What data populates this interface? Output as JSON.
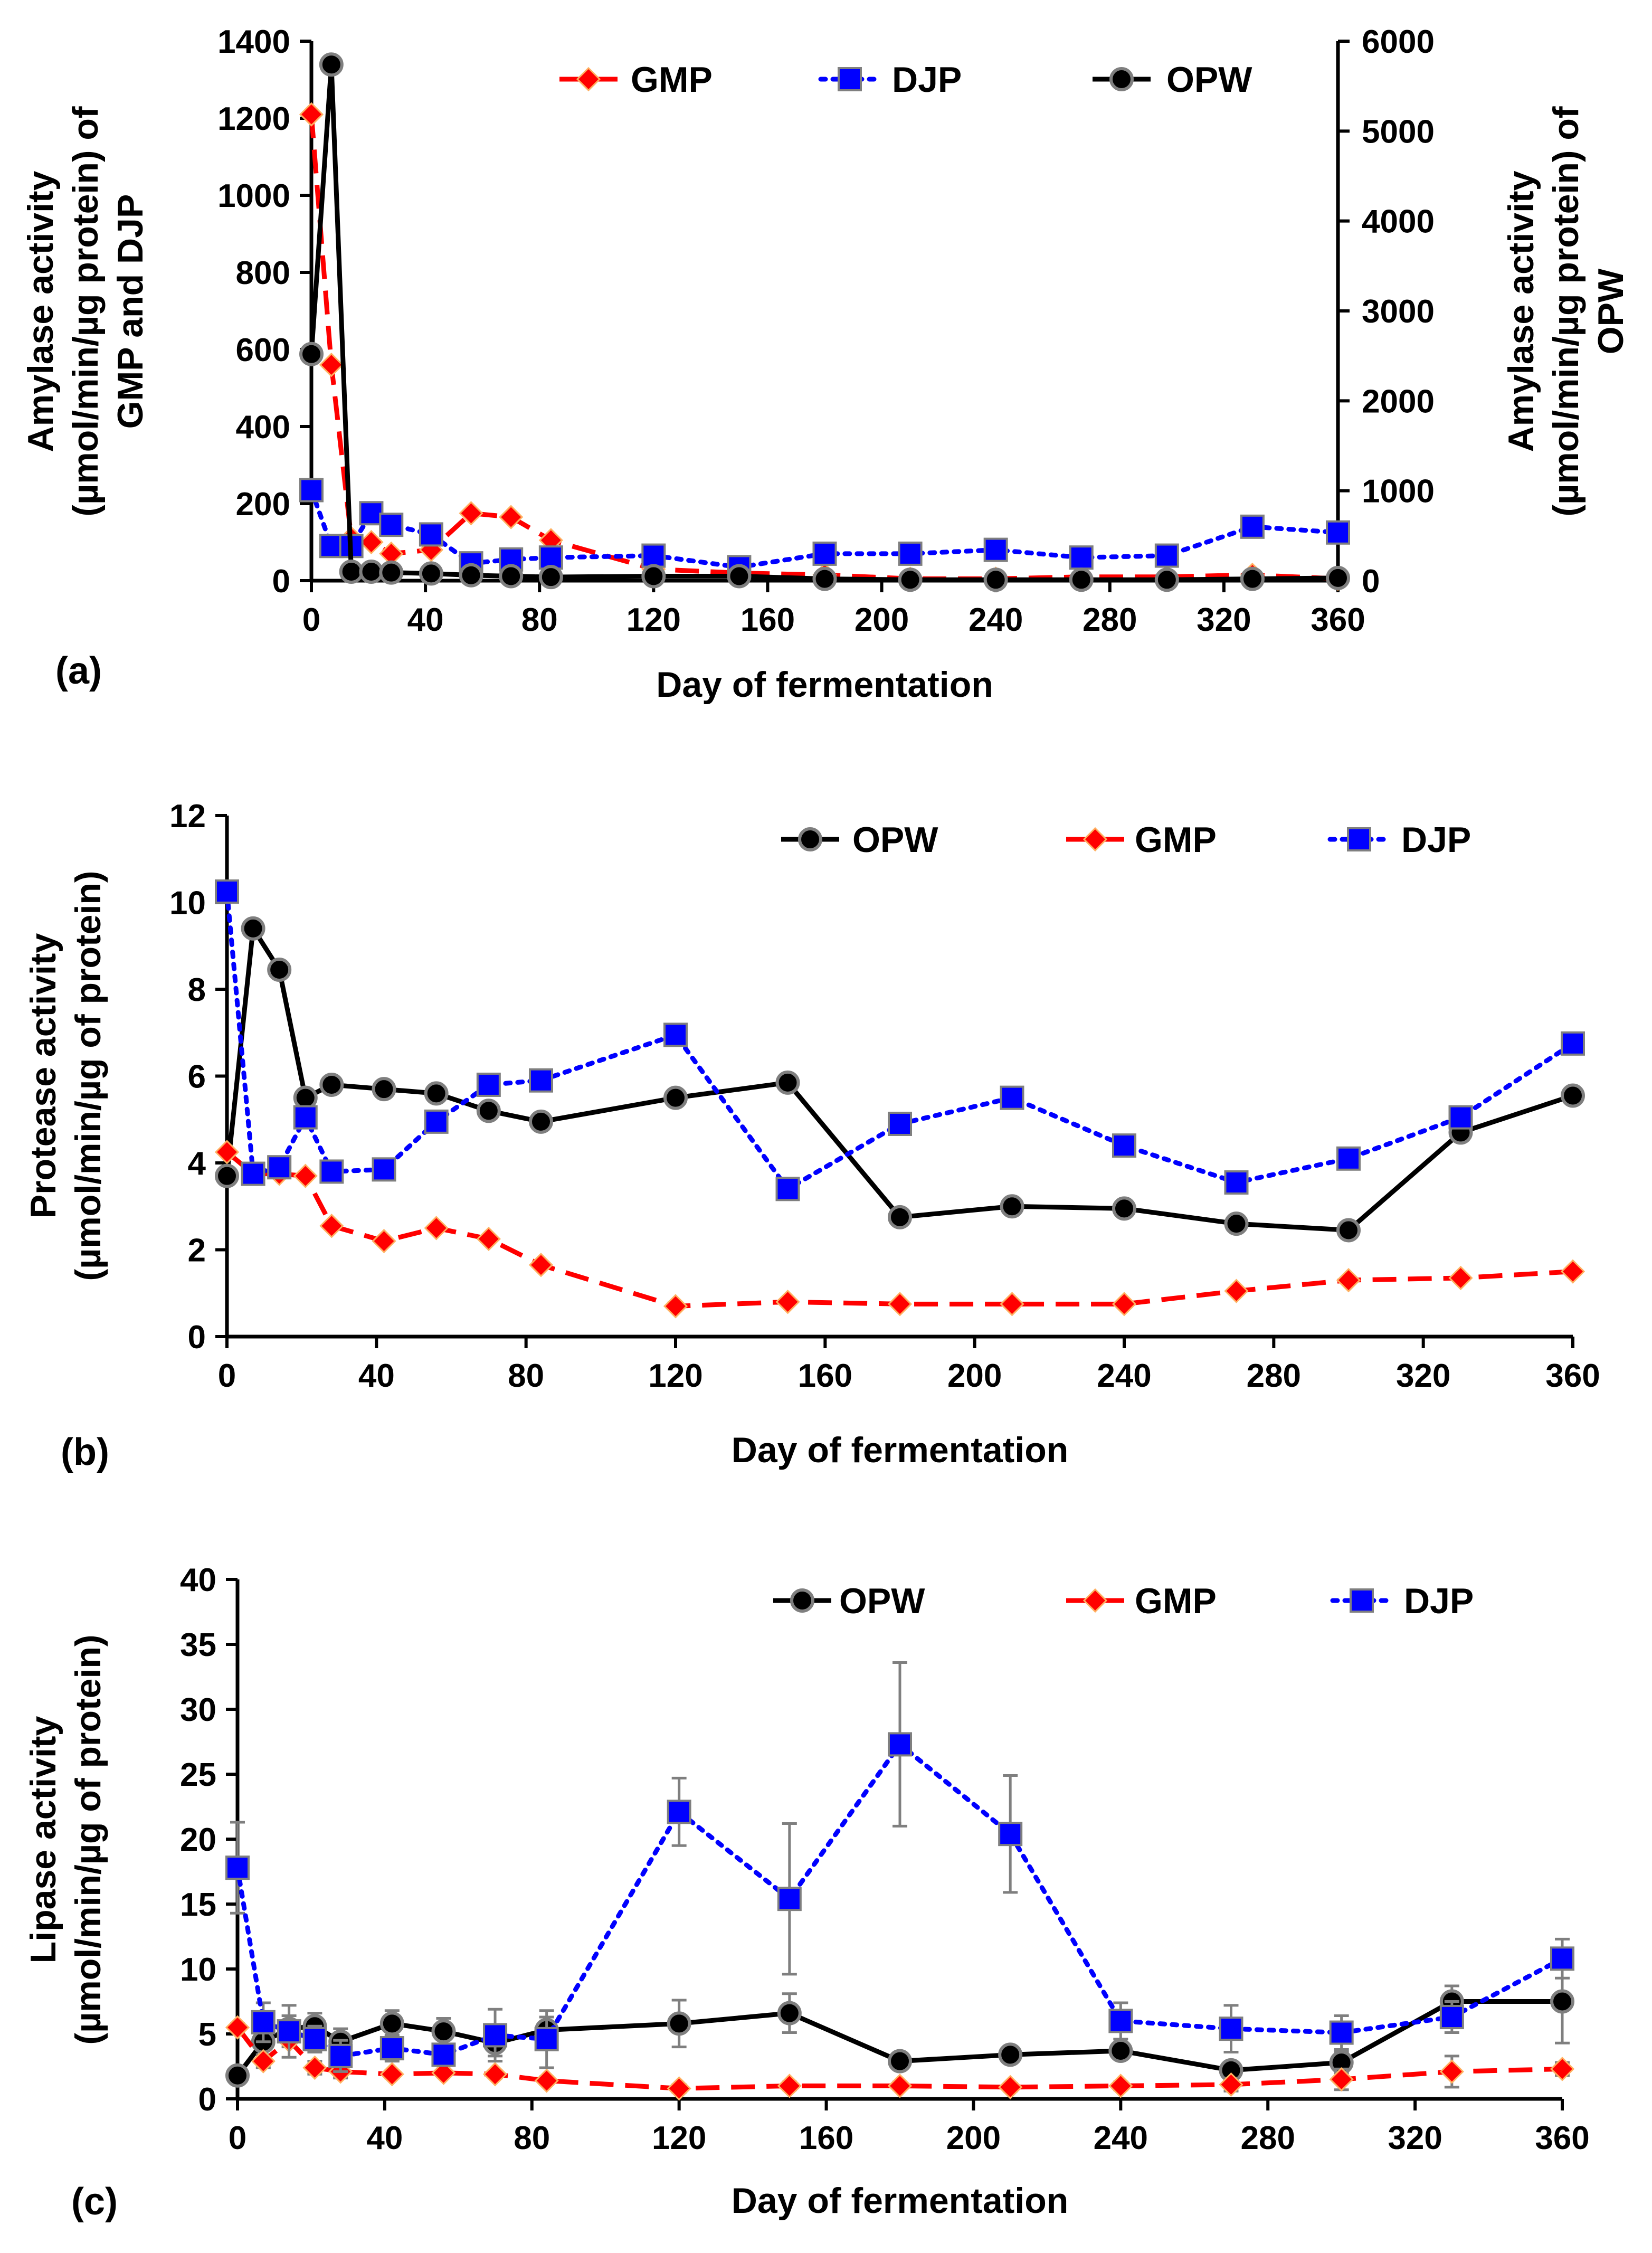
{
  "chart_data": [
    {
      "panel_label": "(a)",
      "type": "line",
      "xlabel": "Day of fermentation",
      "ylabel": [
        "Amylase activity",
        "(µmol/min/µg protein) of",
        "GMP and DJP"
      ],
      "ylabel_right": [
        "Amylase activity",
        "(µmol/min/µg protein) of",
        "OPW"
      ],
      "xlim": [
        0,
        360
      ],
      "ylim": [
        0,
        1400
      ],
      "ylim_right": [
        0,
        6000
      ],
      "x_ticks": [
        "0",
        "40",
        "80",
        "120",
        "160",
        "200",
        "240",
        "280",
        "320",
        "360"
      ],
      "y_ticks": [
        "0",
        "200",
        "400",
        "600",
        "800",
        "1000",
        "1200",
        "1400"
      ],
      "y_ticks_right": [
        "0",
        "1000",
        "2000",
        "3000",
        "4000",
        "5000",
        "6000"
      ],
      "legend_position": "top-right",
      "series": [
        {
          "name": "GMP",
          "axis": "left",
          "color": "#ff0000",
          "dash": "dashed",
          "marker": "diamond",
          "x": [
            0,
            7,
            14,
            21,
            28,
            42,
            56,
            70,
            84,
            120,
            150,
            180,
            210,
            240,
            270,
            300,
            330,
            360
          ],
          "y": [
            1210,
            560,
            110,
            100,
            70,
            80,
            175,
            165,
            105,
            30,
            20,
            15,
            5,
            5,
            10,
            10,
            15,
            5
          ]
        },
        {
          "name": "DJP",
          "axis": "left",
          "color": "#0000ff",
          "dash": "dotted",
          "marker": "square",
          "x": [
            0,
            7,
            14,
            21,
            28,
            42,
            56,
            70,
            84,
            120,
            150,
            180,
            210,
            240,
            270,
            300,
            330,
            360
          ],
          "y": [
            235,
            90,
            90,
            175,
            145,
            120,
            45,
            55,
            60,
            65,
            35,
            70,
            70,
            80,
            60,
            65,
            140,
            125
          ]
        },
        {
          "name": "OPW",
          "axis": "right",
          "color": "#000000",
          "dash": "solid",
          "marker": "circle",
          "x": [
            0,
            7,
            14,
            21,
            28,
            42,
            56,
            70,
            84,
            120,
            150,
            180,
            210,
            240,
            270,
            300,
            330,
            360
          ],
          "y": [
            2520,
            5740,
            100,
            100,
            90,
            80,
            60,
            50,
            40,
            50,
            50,
            20,
            10,
            10,
            10,
            10,
            20,
            30
          ]
        }
      ]
    },
    {
      "panel_label": "(b)",
      "type": "line",
      "xlabel": "Day of fermentation",
      "ylabel": [
        "Protease activity",
        "(µmol/min/µg of protein)"
      ],
      "xlim": [
        0,
        360
      ],
      "ylim": [
        0,
        12
      ],
      "x_ticks": [
        "0",
        "40",
        "80",
        "120",
        "160",
        "200",
        "240",
        "280",
        "320",
        "360"
      ],
      "y_ticks": [
        "0",
        "2",
        "4",
        "6",
        "8",
        "10",
        "12"
      ],
      "legend_position": "top-right",
      "series": [
        {
          "name": "OPW",
          "color": "#000000",
          "dash": "solid",
          "marker": "circle",
          "x": [
            0,
            7,
            14,
            21,
            28,
            42,
            56,
            70,
            84,
            120,
            150,
            180,
            210,
            240,
            270,
            300,
            330,
            360
          ],
          "y": [
            3.7,
            9.4,
            8.45,
            5.5,
            5.8,
            5.7,
            5.6,
            5.2,
            4.95,
            5.5,
            5.85,
            2.75,
            3.0,
            2.95,
            2.6,
            2.45,
            4.7,
            5.55
          ]
        },
        {
          "name": "GMP",
          "color": "#ff0000",
          "dash": "dashed",
          "marker": "diamond",
          "x": [
            0,
            7,
            14,
            21,
            28,
            42,
            56,
            70,
            84,
            120,
            150,
            180,
            210,
            240,
            270,
            300,
            330,
            360
          ],
          "y": [
            4.25,
            3.75,
            3.75,
            3.7,
            2.55,
            2.2,
            2.5,
            2.25,
            1.65,
            0.7,
            0.8,
            0.75,
            0.75,
            0.75,
            1.05,
            1.3,
            1.35,
            1.5
          ]
        },
        {
          "name": "DJP",
          "color": "#0000ff",
          "dash": "dotted",
          "marker": "square",
          "x": [
            0,
            7,
            14,
            21,
            28,
            42,
            56,
            70,
            84,
            120,
            150,
            180,
            210,
            240,
            270,
            300,
            330,
            360
          ],
          "y": [
            10.25,
            3.75,
            3.9,
            5.05,
            3.8,
            3.85,
            4.95,
            5.8,
            5.9,
            6.95,
            3.4,
            4.9,
            5.5,
            4.4,
            3.55,
            4.1,
            5.05,
            6.75
          ]
        }
      ]
    },
    {
      "panel_label": "(c)",
      "type": "line",
      "xlabel": "Day of fermentation",
      "ylabel": [
        "Lipase activity",
        "(µmol/min/µg of protein)"
      ],
      "xlim": [
        0,
        360
      ],
      "ylim": [
        0,
        40
      ],
      "x_ticks": [
        "0",
        "40",
        "80",
        "120",
        "160",
        "200",
        "240",
        "280",
        "320",
        "360"
      ],
      "y_ticks": [
        "0",
        "5",
        "10",
        "15",
        "20",
        "25",
        "30",
        "35",
        "40"
      ],
      "legend_position": "top-right",
      "series": [
        {
          "name": "OPW",
          "color": "#000000",
          "dash": "solid",
          "marker": "circle",
          "x": [
            0,
            7,
            14,
            21,
            28,
            42,
            56,
            70,
            84,
            120,
            150,
            180,
            210,
            240,
            270,
            300,
            330,
            360
          ],
          "y": [
            1.8,
            4.4,
            5.4,
            5.6,
            4.4,
            5.8,
            5.2,
            4.3,
            5.3,
            5.8,
            6.6,
            2.9,
            3.4,
            3.7,
            2.2,
            2.8,
            7.5,
            7.5
          ],
          "err": [
            0.5,
            1.0,
            1.0,
            1.0,
            1.0,
            1.0,
            1.0,
            1.0,
            1.0,
            1.8,
            1.5,
            0.5,
            0.5,
            0.5,
            0.5,
            0.8,
            1.2,
            3.2
          ]
        },
        {
          "name": "GMP",
          "color": "#ff0000",
          "dash": "dashed",
          "marker": "diamond",
          "x": [
            0,
            7,
            14,
            21,
            28,
            42,
            56,
            70,
            84,
            120,
            150,
            180,
            210,
            240,
            270,
            300,
            330,
            360
          ],
          "y": [
            5.5,
            2.9,
            4.5,
            2.4,
            2.1,
            1.9,
            2.0,
            1.9,
            1.4,
            0.8,
            1.0,
            1.0,
            0.9,
            1.0,
            1.1,
            1.5,
            2.1,
            2.3
          ],
          "err": [
            0.3,
            0.5,
            0.5,
            0.5,
            0.5,
            0.3,
            0.3,
            0.3,
            0.3,
            0.3,
            0.3,
            0.3,
            0.3,
            0.3,
            0.5,
            0.8,
            1.2,
            0.5
          ]
        },
        {
          "name": "DJP",
          "color": "#0000ff",
          "dash": "dotted",
          "marker": "square",
          "x": [
            0,
            7,
            14,
            21,
            28,
            42,
            56,
            70,
            84,
            120,
            150,
            180,
            210,
            240,
            270,
            300,
            330,
            360
          ],
          "y": [
            17.8,
            5.9,
            5.2,
            4.6,
            3.3,
            3.9,
            3.4,
            4.9,
            4.6,
            22.1,
            15.4,
            27.3,
            20.4,
            6.0,
            5.4,
            5.1,
            6.3,
            10.8
          ],
          "err": [
            3.5,
            1.5,
            2.0,
            1.0,
            1.2,
            1.0,
            0.8,
            2.0,
            2.2,
            2.6,
            5.8,
            6.3,
            4.5,
            1.4,
            1.8,
            1.3,
            1.2,
            1.5
          ]
        }
      ]
    }
  ]
}
